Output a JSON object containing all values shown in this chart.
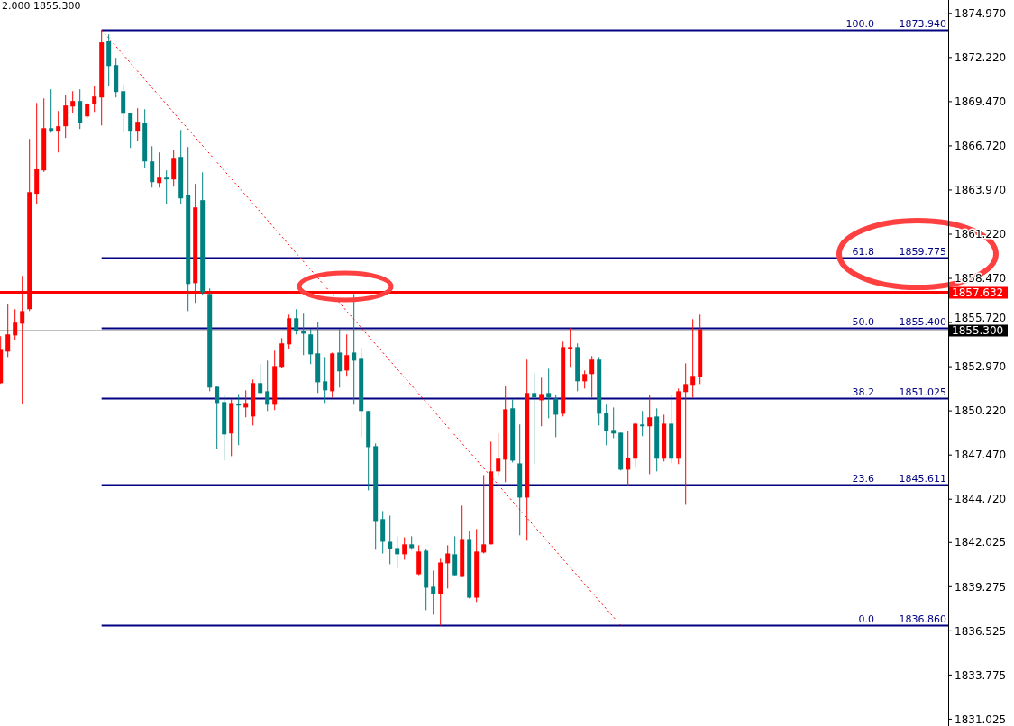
{
  "chart_data": {
    "type": "candlestick",
    "annotations": [
      "2.000 1855.300",
      {
        "text": "100.0",
        "y": 1873.94
      },
      {
        "text": "61.8",
        "y": 1859.775
      },
      {
        "text": "50.0",
        "y": 1855.4
      },
      {
        "text": "38.2",
        "y": 1851.025
      },
      {
        "text": "23.6",
        "y": 1845.611
      },
      {
        "text": "0.0",
        "y": 1836.86
      }
    ],
    "categories": [
      null,
      null,
      null,
      null,
      null,
      null,
      null,
      null,
      null,
      null,
      null,
      null,
      null,
      null,
      null,
      null,
      null,
      null,
      null,
      null,
      null,
      null,
      null,
      null,
      null,
      null,
      null,
      null,
      null,
      null,
      null,
      null,
      null,
      null,
      null,
      null,
      null,
      null,
      null,
      null,
      null,
      null,
      null,
      null,
      null,
      null,
      null,
      null,
      null,
      null,
      null,
      null,
      null,
      null,
      null,
      null,
      null,
      null,
      null,
      null,
      null,
      null,
      null,
      null,
      null,
      null,
      null,
      null,
      null,
      null,
      null,
      null,
      null,
      null,
      null,
      null,
      null,
      null,
      null,
      null,
      null,
      null,
      null,
      null,
      null,
      null,
      null,
      null,
      null,
      null,
      null,
      null,
      null,
      null,
      null,
      null,
      null,
      null,
      null,
      null,
      null,
      null,
      null,
      null,
      null,
      null,
      null,
      null,
      null,
      null,
      null,
      null,
      null,
      null,
      null,
      null,
      null,
      null,
      null,
      null,
      null,
      null,
      null,
      null,
      null,
      null,
      null,
      null,
      null,
      null,
      null
    ],
    "ohlc": [
      [
        1851.95,
        1854.87,
        1851.9,
        1854.02
      ],
      [
        1853.91,
        1856.88,
        1853.57,
        1854.98
      ],
      [
        1854.92,
        1856.55,
        1854.64,
        1855.71
      ],
      [
        1855.65,
        1858.62,
        1850.66,
        1856.43
      ],
      [
        1856.55,
        1867.15,
        1856.43,
        1863.84
      ],
      [
        1863.74,
        1869.39,
        1863.11,
        1865.26
      ],
      [
        1865.19,
        1869.67,
        1865.1,
        1867.82
      ],
      [
        1867.82,
        1870.24,
        1867.54,
        1867.66
      ],
      [
        1867.66,
        1868.89,
        1866.31,
        1867.94
      ],
      [
        1867.94,
        1869.9,
        1867.21,
        1869.23
      ],
      [
        1869.17,
        1870.12,
        1868.78,
        1869.51
      ],
      [
        1869.51,
        1870.24,
        1867.77,
        1868.16
      ],
      [
        1868.55,
        1869.39,
        1868.44,
        1869.34
      ],
      [
        1869.34,
        1870.46,
        1868.83,
        1869.79
      ],
      [
        1869.73,
        1873.94,
        1867.99,
        1873.16
      ],
      [
        1873.27,
        1873.66,
        1870.46,
        1871.69
      ],
      [
        1871.75,
        1872.2,
        1869.73,
        1870.07
      ],
      [
        1870.12,
        1870.52,
        1867.6,
        1868.72
      ],
      [
        1868.78,
        1868.78,
        1866.59,
        1867.66
      ],
      [
        1867.66,
        1869.06,
        1867.04,
        1868.22
      ],
      [
        1868.16,
        1869.0,
        1865.36,
        1865.75
      ],
      [
        1865.75,
        1866.7,
        1864.12,
        1864.46
      ],
      [
        1864.4,
        1866.31,
        1864.12,
        1864.74
      ],
      [
        1864.74,
        1865.19,
        1863.11,
        1864.63
      ],
      [
        1864.63,
        1866.48,
        1864.18,
        1865.97
      ],
      [
        1866.03,
        1867.71,
        1863.11,
        1863.45
      ],
      [
        1863.67,
        1866.65,
        1856.43,
        1858.12
      ],
      [
        1858.17,
        1864.35,
        1856.94,
        1862.89
      ],
      [
        1863.34,
        1865.07,
        1857.45,
        1857.61
      ],
      [
        1857.5,
        1857.84,
        1851.44,
        1851.67
      ],
      [
        1851.72,
        1851.78,
        1847.85,
        1850.71
      ],
      [
        1850.77,
        1851.16,
        1847.12,
        1848.75
      ],
      [
        1848.81,
        1850.94,
        1847.4,
        1850.71
      ],
      [
        1850.66,
        1851.27,
        1848.08,
        1850.55
      ],
      [
        1850.43,
        1851.5,
        1849.82,
        1850.71
      ],
      [
        1849.87,
        1852.17,
        1849.31,
        1851.95
      ],
      [
        1851.95,
        1853.13,
        1851.27,
        1851.33
      ],
      [
        1851.44,
        1853.35,
        1850.21,
        1850.6
      ],
      [
        1850.6,
        1853.97,
        1850.27,
        1853.01
      ],
      [
        1852.96,
        1854.75,
        1852.9,
        1854.42
      ],
      [
        1854.36,
        1856.21,
        1854.08,
        1855.99
      ],
      [
        1855.99,
        1856.55,
        1854.98,
        1855.2
      ],
      [
        1855.2,
        1856.27,
        1853.69,
        1855.03
      ],
      [
        1854.98,
        1855.31,
        1853.13,
        1853.74
      ],
      [
        1853.8,
        1855.76,
        1851.33,
        1852.0
      ],
      [
        1852.06,
        1853.57,
        1850.71,
        1851.5
      ],
      [
        1851.44,
        1853.85,
        1851.05,
        1853.8
      ],
      [
        1853.85,
        1855.31,
        1851.67,
        1852.68
      ],
      [
        1852.73,
        1854.98,
        1852.4,
        1853.69
      ],
      [
        1853.85,
        1857.5,
        1850.6,
        1853.35
      ],
      [
        1853.46,
        1854.14,
        1848.58,
        1850.21
      ],
      [
        1850.21,
        1850.21,
        1845.27,
        1847.96
      ],
      [
        1848.02,
        1848.19,
        1841.57,
        1843.36
      ],
      [
        1843.48,
        1843.98,
        1841.34,
        1842.07
      ],
      [
        1842.07,
        1843.7,
        1840.67,
        1841.62
      ],
      [
        1841.68,
        1842.41,
        1840.39,
        1841.29
      ],
      [
        1841.29,
        1842.35,
        1840.95,
        1841.91
      ],
      [
        1841.91,
        1842.41,
        1841.57,
        1841.68
      ],
      [
        1840.05,
        1841.85,
        1839.99,
        1841.46
      ],
      [
        1841.51,
        1841.62,
        1837.81,
        1839.21
      ],
      [
        1839.27,
        1840.28,
        1837.53,
        1838.82
      ],
      [
        1838.82,
        1841.01,
        1836.86,
        1840.78
      ],
      [
        1840.73,
        1841.85,
        1839.16,
        1841.34
      ],
      [
        1841.29,
        1842.41,
        1839.94,
        1839.99
      ],
      [
        1839.88,
        1844.32,
        1839.88,
        1842.24
      ],
      [
        1842.24,
        1842.75,
        1838.54,
        1838.59
      ],
      [
        1838.59,
        1842.86,
        1838.32,
        1841.46
      ],
      [
        1841.4,
        1846.22,
        1841.34,
        1841.91
      ],
      [
        1841.91,
        1848.3,
        1841.91,
        1846.45
      ],
      [
        1846.45,
        1848.81,
        1846.17,
        1847.24
      ],
      [
        1847.18,
        1851.78,
        1845.78,
        1850.32
      ],
      [
        1850.38,
        1850.94,
        1847.01,
        1847.12
      ],
      [
        1846.95,
        1849.37,
        1842.47,
        1844.82
      ],
      [
        1844.82,
        1853.41,
        1842.13,
        1851.33
      ],
      [
        1851.33,
        1852.56,
        1846.9,
        1851.05
      ],
      [
        1850.88,
        1852.28,
        1849.26,
        1851.27
      ],
      [
        1851.33,
        1852.84,
        1849.76,
        1851.05
      ],
      [
        1850.99,
        1851.22,
        1848.58,
        1849.98
      ],
      [
        1850.04,
        1854.53,
        1849.87,
        1854.19
      ],
      [
        1854.08,
        1855.37,
        1852.96,
        1854.19
      ],
      [
        1854.19,
        1854.42,
        1851.44,
        1852.06
      ],
      [
        1852.06,
        1852.73,
        1851.61,
        1852.51
      ],
      [
        1852.51,
        1853.63,
        1851.05,
        1853.41
      ],
      [
        1853.41,
        1853.57,
        1849.31,
        1850.04
      ],
      [
        1850.1,
        1850.6,
        1848.08,
        1848.97
      ],
      [
        1849.03,
        1850.43,
        1848.52,
        1848.81
      ],
      [
        1848.86,
        1848.86,
        1846.51,
        1846.56
      ],
      [
        1846.56,
        1848.97,
        1845.55,
        1847.29
      ],
      [
        1847.24,
        1849.48,
        1846.73,
        1849.42
      ],
      [
        1849.37,
        1850.21,
        1848.64,
        1849.26
      ],
      [
        1849.26,
        1851.22,
        1846.28,
        1849.82
      ],
      [
        1849.87,
        1850.38,
        1846.45,
        1847.24
      ],
      [
        1847.24,
        1849.98,
        1847.07,
        1849.42
      ],
      [
        1849.42,
        1851.22,
        1846.95,
        1847.24
      ],
      [
        1847.24,
        1851.61,
        1846.9,
        1851.44
      ],
      [
        1851.39,
        1853.18,
        1844.37,
        1851.89
      ],
      [
        1851.84,
        1855.93,
        1851.05,
        1852.4
      ],
      [
        1852.34,
        1856.21,
        1851.89,
        1855.3
      ],
      null,
      null,
      null,
      null,
      null,
      null,
      null,
      null,
      null,
      null,
      null,
      null,
      null,
      null,
      null,
      null,
      null,
      null,
      null,
      null,
      null,
      null,
      null,
      null,
      null,
      null,
      null,
      null,
      null,
      null,
      null,
      null,
      null
    ],
    "colors": [
      "#ff0000",
      "#ff0000",
      "#ff0000",
      "#ff0000",
      "#ff0000",
      "#ff0000",
      "#ff0000",
      "#008080",
      "#ff0000",
      "#ff0000",
      "#ff0000",
      "#008080",
      "#ff0000",
      "#ff0000",
      "#ff0000",
      "#008080",
      "#008080",
      "#008080",
      "#008080",
      "#ff0000",
      "#008080",
      "#008080",
      "#ff0000",
      "#008080",
      "#ff0000",
      "#008080",
      "#008080",
      "#ff0000",
      "#008080",
      "#008080",
      "#008080",
      "#008080",
      "#ff0000",
      "#008080",
      "#ff0000",
      "#ff0000",
      "#008080",
      "#008080",
      "#ff0000",
      "#ff0000",
      "#ff0000",
      "#008080",
      "#008080",
      "#008080",
      "#008080",
      "#008080",
      "#ff0000",
      "#008080",
      "#ff0000",
      "#008080",
      "#008080",
      "#008080",
      "#008080",
      "#008080",
      "#008080",
      "#008080",
      "#ff0000",
      "#008080",
      "#ff0000",
      "#008080",
      "#008080",
      "#ff0000",
      "#ff0000",
      "#008080",
      "#ff0000",
      "#008080",
      "#ff0000",
      "#ff0000",
      "#ff0000",
      "#ff0000",
      "#ff0000",
      "#008080",
      "#008080",
      "#ff0000",
      "#008080",
      "#ff0000",
      "#008080",
      "#008080",
      "#ff0000",
      "#ff0000",
      "#008080",
      "#ff0000",
      "#ff0000",
      "#008080",
      "#008080",
      "#008080",
      "#008080",
      "#ff0000",
      "#ff0000",
      "#008080",
      "#ff0000",
      "#008080",
      "#ff0000",
      "#008080",
      "#ff0000",
      "#ff0000",
      "#ff0000",
      "#ff0000",
      null,
      null,
      null,
      null,
      null,
      null,
      null,
      null,
      null,
      null,
      null,
      null,
      null,
      null,
      null,
      null,
      null,
      null,
      null,
      null,
      null,
      null,
      null,
      null,
      null,
      null,
      null,
      null,
      null,
      null,
      null,
      null,
      null
    ],
    "series": [
      {
        "type": "line",
        "color": "#ff0000",
        "line_style": "dotted",
        "values": [
          null,
          null,
          null,
          null,
          null,
          null,
          null,
          null,
          null,
          null,
          null,
          null,
          null,
          null,
          1873.94,
          null,
          null,
          null,
          null,
          null,
          null,
          null,
          null,
          null,
          null,
          null,
          null,
          null,
          null,
          null,
          null,
          null,
          null,
          null,
          null,
          null,
          null,
          null,
          null,
          null,
          null,
          null,
          null,
          null,
          null,
          null,
          null,
          null,
          null,
          null,
          null,
          null,
          null,
          null,
          null,
          null,
          null,
          null,
          null,
          null,
          null,
          null,
          null,
          null,
          null,
          null,
          null,
          null,
          null,
          null,
          null,
          null,
          null,
          null,
          null,
          null,
          null,
          null,
          null,
          null,
          null,
          null,
          null,
          null,
          null,
          null,
          1836.86,
          null,
          null,
          null,
          null,
          null,
          null,
          null,
          null,
          null,
          null,
          null,
          null,
          null,
          null,
          null,
          null,
          null,
          null,
          null,
          null,
          null,
          null,
          null,
          null,
          null,
          null,
          null,
          null,
          null,
          null,
          null,
          null,
          null,
          null,
          null,
          null,
          null,
          null,
          null,
          null,
          null,
          null,
          null,
          null
        ]
      }
    ],
    "ylim": [
      1830.6,
      1875.8
    ],
    "yticks": [
      1831.025,
      1833.775,
      1836.525,
      1839.275,
      1842.025,
      {
        "value": 1844.72,
        "label": "1844.720"
      },
      {
        "value": 1847.47,
        "label": "1847.470"
      },
      {
        "value": 1850.22,
        "label": "1850.220"
      },
      {
        "value": 1852.97,
        "label": "1852.970"
      },
      {
        "value": 1855.72,
        "label": "1855.720"
      },
      {
        "value": 1858.47,
        "label": "1858.470"
      },
      {
        "value": 1861.22,
        "label": "1861.220"
      },
      {
        "value": 1863.97,
        "label": "1863.970"
      },
      {
        "value": 1866.72,
        "label": "1866.720"
      },
      {
        "value": 1869.47,
        "label": "1869.470"
      },
      {
        "value": 1872.22,
        "label": "1872.220"
      },
      {
        "value": 1874.97,
        "label": "1874.970"
      }
    ],
    "tick_labels": "y",
    "ref_lines": [
      {
        "axis": "y",
        "value": 1873.94,
        "label": "1873.940",
        "color": "#000080"
      },
      {
        "axis": "y",
        "value": 1859.775,
        "label": "1859.775",
        "color": "#000080"
      },
      {
        "axis": "y",
        "value": 1855.4,
        "label": "1855.400",
        "color": "#000080"
      },
      {
        "axis": "y",
        "value": 1851.025,
        "label": "1851.025",
        "color": "#000080"
      },
      {
        "axis": "y",
        "value": 1845.611,
        "label": "1845.611",
        "color": "#000080"
      },
      {
        "axis": "y",
        "value": 1836.86,
        "label": "1836.860",
        "color": "#000080"
      },
      {
        "axis": "y",
        "value": 1857.632,
        "label": "1857.632",
        "color": "#ff0000"
      },
      {
        "axis": "y",
        "value": 1855.3,
        "label": "1855.300",
        "color": "#c0c0c0"
      }
    ]
  }
}
